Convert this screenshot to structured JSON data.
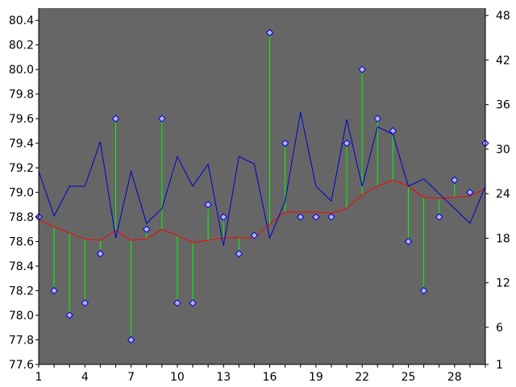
{
  "chart_data": {
    "type": "line",
    "title": "",
    "xlabel": "",
    "ylabel": "",
    "x": [
      1,
      2,
      3,
      4,
      5,
      6,
      7,
      8,
      9,
      10,
      11,
      12,
      13,
      14,
      15,
      16,
      17,
      18,
      19,
      20,
      21,
      22,
      23,
      24,
      25,
      26,
      27,
      28,
      29,
      30
    ],
    "xticks": [
      1,
      4,
      7,
      10,
      13,
      16,
      19,
      22,
      25,
      28
    ],
    "xlim": [
      1,
      30
    ],
    "ylim_left": [
      77.6,
      80.5
    ],
    "yticks_left": [
      77.6,
      77.8,
      78.0,
      78.2,
      78.4,
      78.6,
      78.8,
      79.0,
      79.2,
      79.4,
      79.6,
      79.8,
      80.0,
      80.2,
      80.4
    ],
    "ylim_right": [
      1,
      49
    ],
    "yticks_right": [
      1,
      6,
      12,
      18,
      24,
      30,
      36,
      42,
      48
    ],
    "colors": {
      "plot_background": "#666666",
      "price_line": "#ff0000",
      "stem": "#00ff00",
      "marker_fill": "#b4b4ff",
      "marker_edge": "#0000cc",
      "volume_line": "#0000cc"
    },
    "series": [
      {
        "axis": "left",
        "style": "stem-marker",
        "baseline": "moving-average",
        "values": [
          78.8,
          78.2,
          78.0,
          78.1,
          78.5,
          79.6,
          77.8,
          78.7,
          79.6,
          78.1,
          78.1,
          78.9,
          78.8,
          78.5,
          78.65,
          80.3,
          79.4,
          78.8,
          78.8,
          78.8,
          79.4,
          80.0,
          79.6,
          79.5,
          78.6,
          78.2,
          78.8,
          79.1,
          79.0,
          79.4
        ]
      },
      {
        "axis": "left",
        "style": "line",
        "values": [
          78.78,
          78.72,
          78.67,
          78.62,
          78.61,
          78.69,
          78.61,
          78.62,
          78.7,
          78.65,
          78.59,
          78.61,
          78.63,
          78.63,
          78.63,
          78.74,
          78.84,
          78.84,
          78.84,
          78.83,
          78.87,
          78.98,
          79.05,
          79.1,
          79.05,
          78.96,
          78.95,
          78.96,
          78.97,
          79.03
        ]
      },
      {
        "axis": "right",
        "style": "line",
        "values": [
          27,
          21,
          25,
          25,
          31,
          18,
          27,
          20,
          22,
          29,
          25,
          28,
          17,
          29,
          28,
          18,
          23,
          35,
          25,
          23,
          34,
          25,
          33,
          32,
          25,
          26,
          24,
          22,
          20,
          25
        ]
      }
    ]
  }
}
